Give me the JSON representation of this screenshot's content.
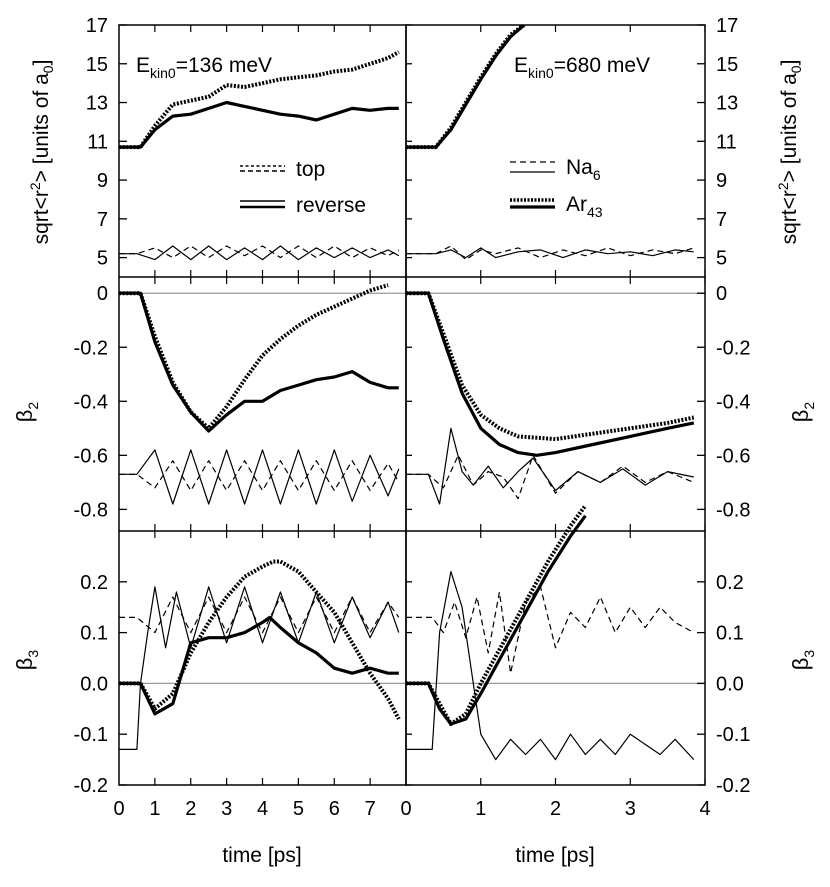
{
  "chart_data": {
    "type": "line",
    "x_axis": {
      "label": "time [ps]",
      "left_xlim": [
        0,
        8
      ],
      "left_ticks": [
        "0",
        "1",
        "2",
        "3",
        "4",
        "5",
        "6",
        "7"
      ],
      "right_xlim": [
        0,
        4
      ],
      "right_ticks": [
        "0",
        "1",
        "2",
        "3",
        "4"
      ]
    },
    "rows": [
      {
        "id": "r2",
        "ylabel_main": "sqrt<r",
        "ylabel_sup": "2",
        "ylabel_mid": "> [units of a",
        "ylabel_sub": "0",
        "ylabel_end": "]",
        "ylim": [
          4,
          17
        ],
        "yticks": [
          5,
          7,
          9,
          11,
          13,
          15,
          17
        ],
        "ytick_labels": [
          "5",
          "7",
          "9",
          "11",
          "13",
          "15",
          "17"
        ]
      },
      {
        "id": "beta2",
        "ylabel_main": "β",
        "ylabel_sub": "2",
        "ylim": [
          -0.88,
          0.06
        ],
        "yticks": [
          0,
          -0.2,
          -0.4,
          -0.6,
          -0.8
        ],
        "ytick_labels": [
          "0",
          "-0.2",
          "-0.4",
          "-0.6",
          "-0.8"
        ]
      },
      {
        "id": "beta3",
        "ylabel_main": "β",
        "ylabel_sub": "3",
        "ylim": [
          -0.2,
          0.3
        ],
        "yticks": [
          0.2,
          0.1,
          0.0,
          -0.1,
          -0.2
        ],
        "ytick_labels": [
          "0.2",
          "0.1",
          "0.0",
          "-0.1",
          "-0.2"
        ]
      }
    ],
    "annotations": {
      "left_main": "E",
      "left_sub": "kin0",
      "left_rest": "=136 meV",
      "right_main": "E",
      "right_sub": "kin0",
      "right_rest": "=680 meV"
    },
    "legend_left": [
      {
        "label": "top",
        "style": "dashed double line"
      },
      {
        "label": "reverse",
        "style": "solid double line"
      }
    ],
    "legend_right": [
      {
        "label_main": "Na",
        "label_sub": "6",
        "style": "dashed / thin solid"
      },
      {
        "label_main": "Ar",
        "label_sub": "43",
        "style": "dotted / thick solid"
      }
    ],
    "series": [
      {
        "panel": "r2-left",
        "name": "Ar43 top (dotted)",
        "x": [
          0,
          0.6,
          1,
          1.5,
          2,
          2.5,
          3,
          3.5,
          4,
          4.5,
          5,
          5.5,
          6,
          6.5,
          7,
          7.5,
          7.8
        ],
        "y": [
          10.7,
          10.7,
          11.8,
          12.9,
          13.1,
          13.3,
          13.9,
          13.8,
          14.0,
          14.2,
          14.3,
          14.4,
          14.6,
          14.7,
          15.0,
          15.3,
          15.6
        ]
      },
      {
        "panel": "r2-left",
        "name": "Ar43 reverse (thick)",
        "x": [
          0,
          0.6,
          1,
          1.5,
          2,
          2.5,
          3,
          3.5,
          4,
          4.5,
          5,
          5.5,
          6,
          6.5,
          7,
          7.5,
          7.8
        ],
        "y": [
          10.7,
          10.7,
          11.6,
          12.3,
          12.4,
          12.7,
          13.0,
          12.8,
          12.6,
          12.4,
          12.3,
          12.1,
          12.4,
          12.7,
          12.6,
          12.7,
          12.7
        ]
      },
      {
        "panel": "r2-left",
        "name": "Na6 top (dashed)",
        "x": [
          0,
          0.5,
          1,
          1.5,
          2,
          2.5,
          3,
          3.5,
          4,
          4.5,
          5,
          5.5,
          6,
          6.5,
          7,
          7.5,
          7.8
        ],
        "y": [
          5.2,
          5.2,
          5.5,
          5.0,
          5.6,
          5.0,
          5.6,
          5.1,
          5.6,
          5.0,
          5.6,
          5.0,
          5.6,
          5.0,
          5.5,
          5.1,
          5.4
        ]
      },
      {
        "panel": "r2-left",
        "name": "Na6 reverse (thin)",
        "x": [
          0,
          0.5,
          1,
          1.5,
          2,
          2.5,
          3,
          3.5,
          4,
          4.5,
          5,
          5.5,
          6,
          6.5,
          7,
          7.5,
          7.8
        ],
        "y": [
          5.2,
          5.2,
          4.9,
          5.6,
          4.9,
          5.6,
          4.9,
          5.5,
          4.9,
          5.6,
          4.9,
          5.5,
          5.0,
          5.5,
          5.0,
          5.4,
          5.1
        ]
      },
      {
        "panel": "r2-right",
        "name": "Ar43 top (dotted)",
        "x": [
          0,
          0.3,
          0.4,
          0.6,
          0.8,
          1.0,
          1.2,
          1.4,
          1.58
        ],
        "y": [
          10.7,
          10.7,
          10.7,
          11.7,
          13.0,
          14.3,
          15.5,
          16.5,
          17.0
        ]
      },
      {
        "panel": "r2-right",
        "name": "Ar43 reverse (thick)",
        "x": [
          0,
          0.3,
          0.4,
          0.6,
          0.8,
          1.0,
          1.2,
          1.4,
          1.58
        ],
        "y": [
          10.7,
          10.7,
          10.7,
          11.6,
          12.9,
          14.2,
          15.4,
          16.4,
          17.0
        ]
      },
      {
        "panel": "r2-right",
        "name": "Na6 top (dashed)",
        "x": [
          0,
          0.4,
          0.6,
          0.8,
          1.0,
          1.2,
          1.5,
          1.8,
          2.1,
          2.4,
          2.7,
          3.0,
          3.3,
          3.6,
          3.85
        ],
        "y": [
          5.2,
          5.2,
          5.6,
          4.9,
          5.4,
          5.2,
          5.5,
          5.0,
          5.4,
          5.1,
          5.5,
          5.1,
          5.4,
          5.2,
          5.5
        ]
      },
      {
        "panel": "r2-right",
        "name": "Na6 reverse (thin)",
        "x": [
          0,
          0.4,
          0.6,
          0.8,
          1.0,
          1.2,
          1.5,
          1.8,
          2.1,
          2.4,
          2.7,
          3.0,
          3.3,
          3.6,
          3.85
        ],
        "y": [
          5.2,
          5.2,
          5.4,
          5.0,
          5.5,
          5.0,
          5.3,
          5.4,
          5.0,
          5.4,
          5.2,
          5.3,
          5.1,
          5.4,
          5.3
        ]
      },
      {
        "panel": "beta2-left",
        "name": "Ar43 top (dotted)",
        "x": [
          0,
          0.6,
          1,
          1.5,
          2,
          2.5,
          3,
          3.5,
          4,
          4.5,
          5,
          5.5,
          6,
          6.5,
          7,
          7.5
        ],
        "y": [
          0,
          0,
          -0.16,
          -0.33,
          -0.44,
          -0.5,
          -0.42,
          -0.32,
          -0.23,
          -0.17,
          -0.12,
          -0.08,
          -0.05,
          -0.02,
          0.01,
          0.03
        ]
      },
      {
        "panel": "beta2-left",
        "name": "Ar43 reverse (thick)",
        "x": [
          0,
          0.6,
          1,
          1.5,
          2,
          2.5,
          3,
          3.5,
          4,
          4.5,
          5,
          5.5,
          6,
          6.5,
          7,
          7.5,
          7.8
        ],
        "y": [
          0,
          0,
          -0.18,
          -0.34,
          -0.44,
          -0.51,
          -0.45,
          -0.4,
          -0.4,
          -0.36,
          -0.34,
          -0.32,
          -0.31,
          -0.29,
          -0.33,
          -0.35,
          -0.35
        ]
      },
      {
        "panel": "beta2-left",
        "name": "Na6 top (dashed)",
        "x": [
          0,
          0.5,
          1,
          1.5,
          2,
          2.5,
          3,
          3.5,
          4,
          4.5,
          5,
          5.5,
          6,
          6.5,
          7,
          7.5,
          7.8
        ],
        "y": [
          -0.67,
          -0.67,
          -0.72,
          -0.62,
          -0.73,
          -0.62,
          -0.73,
          -0.62,
          -0.73,
          -0.62,
          -0.73,
          -0.62,
          -0.73,
          -0.62,
          -0.73,
          -0.63,
          -0.7
        ]
      },
      {
        "panel": "beta2-left",
        "name": "Na6 reverse (thin)",
        "x": [
          0,
          0.5,
          1,
          1.5,
          2,
          2.5,
          3,
          3.5,
          4,
          4.5,
          5,
          5.5,
          6,
          6.5,
          7,
          7.5,
          7.8
        ],
        "y": [
          -0.67,
          -0.67,
          -0.58,
          -0.78,
          -0.58,
          -0.78,
          -0.58,
          -0.78,
          -0.58,
          -0.78,
          -0.58,
          -0.78,
          -0.58,
          -0.77,
          -0.6,
          -0.75,
          -0.65
        ]
      },
      {
        "panel": "beta2-right",
        "name": "Ar43 top (dotted)",
        "x": [
          0,
          0.3,
          0.5,
          0.75,
          1,
          1.25,
          1.5,
          2,
          2.5,
          3,
          3.5,
          3.85
        ],
        "y": [
          0,
          0,
          -0.15,
          -0.34,
          -0.45,
          -0.5,
          -0.53,
          -0.54,
          -0.52,
          -0.5,
          -0.48,
          -0.46
        ]
      },
      {
        "panel": "beta2-right",
        "name": "Ar43 reverse (thick)",
        "x": [
          0,
          0.3,
          0.5,
          0.75,
          1,
          1.25,
          1.5,
          1.75,
          2,
          2.5,
          3,
          3.5,
          3.85
        ],
        "y": [
          0,
          0,
          -0.17,
          -0.37,
          -0.5,
          -0.56,
          -0.59,
          -0.6,
          -0.59,
          -0.56,
          -0.53,
          -0.5,
          -0.48
        ]
      },
      {
        "panel": "beta2-right",
        "name": "Na6 top (dashed)",
        "x": [
          0,
          0.3,
          0.5,
          0.7,
          0.9,
          1.1,
          1.3,
          1.5,
          1.7,
          2.0,
          2.3,
          2.6,
          2.9,
          3.2,
          3.5,
          3.85
        ],
        "y": [
          -0.67,
          -0.67,
          -0.72,
          -0.6,
          -0.71,
          -0.66,
          -0.68,
          -0.76,
          -0.6,
          -0.74,
          -0.66,
          -0.7,
          -0.64,
          -0.7,
          -0.66,
          -0.7
        ]
      },
      {
        "panel": "beta2-right",
        "name": "Na6 reverse (thin)",
        "x": [
          0,
          0.3,
          0.45,
          0.6,
          0.75,
          0.9,
          1.1,
          1.3,
          1.5,
          1.7,
          2.0,
          2.3,
          2.6,
          2.9,
          3.2,
          3.5,
          3.85
        ],
        "y": [
          -0.67,
          -0.67,
          -0.78,
          -0.5,
          -0.66,
          -0.71,
          -0.64,
          -0.72,
          -0.66,
          -0.61,
          -0.73,
          -0.66,
          -0.7,
          -0.65,
          -0.71,
          -0.66,
          -0.68
        ]
      },
      {
        "panel": "beta3-left",
        "name": "Ar43 top (dotted)",
        "x": [
          0,
          0.6,
          1,
          1.5,
          2,
          2.5,
          3,
          3.5,
          4,
          4.3,
          4.5,
          5,
          5.5,
          6,
          6.5,
          7,
          7.5,
          7.8
        ],
        "y": [
          0,
          0,
          -0.05,
          -0.02,
          0.06,
          0.12,
          0.17,
          0.21,
          0.23,
          0.24,
          0.24,
          0.22,
          0.18,
          0.14,
          0.08,
          0.02,
          -0.03,
          -0.07
        ]
      },
      {
        "panel": "beta3-left",
        "name": "Ar43 reverse (thick)",
        "x": [
          0,
          0.6,
          1,
          1.5,
          2,
          2.5,
          3,
          3.5,
          4,
          4.2,
          4.5,
          5,
          5.5,
          6,
          6.5,
          7,
          7.5,
          7.8
        ],
        "y": [
          0,
          0,
          -0.06,
          -0.04,
          0.08,
          0.09,
          0.09,
          0.1,
          0.12,
          0.13,
          0.11,
          0.08,
          0.06,
          0.03,
          0.02,
          0.03,
          0.02,
          0.02
        ]
      },
      {
        "panel": "beta3-left",
        "name": "Na6 top (dashed)",
        "x": [
          0,
          0.5,
          1,
          1.5,
          2,
          2.5,
          3,
          3.5,
          4,
          4.5,
          5,
          5.5,
          6,
          6.5,
          7,
          7.5,
          7.8
        ],
        "y": [
          0.13,
          0.13,
          0.1,
          0.17,
          0.1,
          0.17,
          0.1,
          0.17,
          0.1,
          0.17,
          0.1,
          0.17,
          0.1,
          0.17,
          0.1,
          0.16,
          0.13
        ]
      },
      {
        "panel": "beta3-left",
        "name": "Na6 reverse (thin)",
        "x": [
          0,
          0.5,
          0.6,
          0.8,
          1.0,
          1.3,
          1.6,
          2.0,
          2.5,
          3,
          3.5,
          4,
          4.5,
          5,
          5.5,
          6,
          6.5,
          7,
          7.5,
          7.8
        ],
        "y": [
          -0.13,
          -0.13,
          0.0,
          0.1,
          0.19,
          0.07,
          0.18,
          0.07,
          0.19,
          0.08,
          0.19,
          0.08,
          0.18,
          0.08,
          0.18,
          0.08,
          0.17,
          0.09,
          0.16,
          0.1
        ]
      },
      {
        "panel": "beta3-right",
        "name": "Ar43 top (dotted)",
        "x": [
          0,
          0.3,
          0.45,
          0.6,
          0.8,
          1.0,
          1.3,
          1.6,
          1.9,
          2.2,
          2.4
        ],
        "y": [
          0,
          0,
          -0.04,
          -0.08,
          -0.06,
          0.0,
          0.08,
          0.16,
          0.24,
          0.31,
          0.35
        ]
      },
      {
        "panel": "beta3-right",
        "name": "Ar43 reverse (thick)",
        "x": [
          0,
          0.3,
          0.45,
          0.6,
          0.8,
          1.0,
          1.3,
          1.6,
          1.9,
          2.2,
          2.4
        ],
        "y": [
          0,
          0,
          -0.05,
          -0.08,
          -0.07,
          -0.02,
          0.06,
          0.14,
          0.22,
          0.29,
          0.33
        ]
      },
      {
        "panel": "beta3-right",
        "name": "Na6 top (dashed)",
        "x": [
          0,
          0.35,
          0.5,
          0.65,
          0.8,
          0.95,
          1.1,
          1.25,
          1.4,
          1.6,
          1.8,
          2.0,
          2.2,
          2.4,
          2.6,
          2.8,
          3.0,
          3.2,
          3.4,
          3.6,
          3.85
        ],
        "y": [
          0.13,
          0.13,
          0.1,
          0.16,
          0.09,
          0.17,
          0.06,
          0.18,
          0.02,
          0.16,
          0.19,
          0.07,
          0.14,
          0.11,
          0.17,
          0.1,
          0.15,
          0.11,
          0.15,
          0.12,
          0.1
        ]
      },
      {
        "panel": "beta3-right",
        "name": "Na6 reverse (thin)",
        "x": [
          0,
          0.35,
          0.45,
          0.6,
          0.75,
          0.9,
          1.0,
          1.2,
          1.4,
          1.6,
          1.8,
          2.0,
          2.2,
          2.4,
          2.6,
          2.8,
          3.0,
          3.2,
          3.4,
          3.6,
          3.85
        ],
        "y": [
          -0.13,
          -0.13,
          0.1,
          0.22,
          0.15,
          0.0,
          -0.1,
          -0.15,
          -0.11,
          -0.14,
          -0.11,
          -0.15,
          -0.1,
          -0.14,
          -0.11,
          -0.14,
          -0.1,
          -0.12,
          -0.14,
          -0.11,
          -0.15
        ]
      }
    ]
  }
}
